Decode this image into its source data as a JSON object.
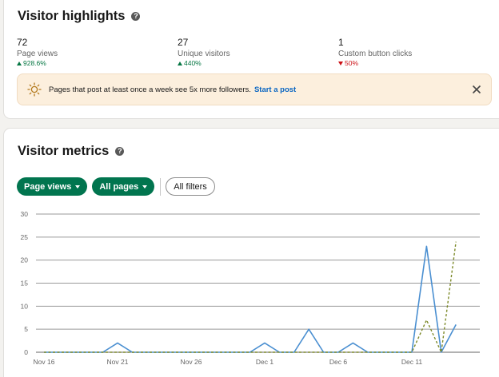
{
  "highlights": {
    "title": "Visitor highlights",
    "metrics": [
      {
        "value": "72",
        "label": "Page views",
        "change": "928.6%",
        "direction": "up"
      },
      {
        "value": "27",
        "label": "Unique visitors",
        "change": "440%",
        "direction": "up"
      },
      {
        "value": "1",
        "label": "Custom button clicks",
        "change": "50%",
        "direction": "down"
      }
    ],
    "banner": {
      "text": "Pages that post at least once a week see 5x more followers.",
      "link": "Start a post",
      "icon": "lightbulb-icon",
      "close_icon": "close-icon"
    }
  },
  "metrics_section": {
    "title": "Visitor metrics",
    "filters": {
      "metric": "Page views",
      "pages": "All pages",
      "all_filters": "All filters"
    }
  },
  "colors": {
    "green": "#01754f",
    "blue_series": "#4a8fd1",
    "olive_series": "#7d8a2a",
    "up": "#057642",
    "down": "#cc1016"
  },
  "chart_data": {
    "type": "line",
    "x": [
      "Nov 16",
      "Nov 17",
      "Nov 18",
      "Nov 19",
      "Nov 20",
      "Nov 21",
      "Nov 22",
      "Nov 23",
      "Nov 24",
      "Nov 25",
      "Nov 26",
      "Nov 27",
      "Nov 28",
      "Nov 29",
      "Nov 30",
      "Dec 1",
      "Dec 2",
      "Dec 3",
      "Dec 4",
      "Dec 5",
      "Dec 6",
      "Dec 7",
      "Dec 8",
      "Dec 9",
      "Dec 10",
      "Dec 11",
      "Dec 12",
      "Dec 13",
      "Dec 14",
      "Dec 15"
    ],
    "x_tick_labels": [
      "Nov 16",
      "Nov 21",
      "Nov 26",
      "Dec 1",
      "Dec 6",
      "Dec 11"
    ],
    "y_ticks": [
      0,
      5,
      10,
      15,
      20,
      25,
      30
    ],
    "ylim": [
      0,
      30
    ],
    "grid": true,
    "series": [
      {
        "style": "solid",
        "values": [
          0,
          0,
          0,
          0,
          0,
          2,
          0,
          0,
          0,
          0,
          0,
          0,
          0,
          0,
          0,
          2,
          0,
          0,
          5,
          0,
          0,
          2,
          0,
          0,
          0,
          0,
          23,
          0,
          6,
          null
        ]
      },
      {
        "style": "dashed",
        "values": [
          0,
          0,
          0,
          0,
          0,
          0,
          0,
          0,
          0,
          0,
          0,
          0,
          0,
          0,
          0,
          0,
          0,
          0,
          0,
          0,
          0,
          0,
          0,
          0,
          0,
          0,
          7,
          0,
          24,
          null
        ]
      }
    ]
  }
}
